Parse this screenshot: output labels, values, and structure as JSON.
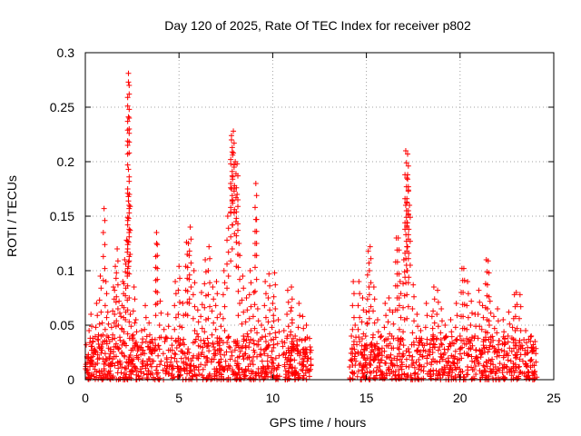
{
  "chart_data": {
    "type": "scatter",
    "title": "Day 120 of 2025, Rate Of TEC Index for receiver p802",
    "xlabel": "GPS time / hours",
    "ylabel": "ROTI / TECUs",
    "xlim": [
      0,
      25
    ],
    "ylim": [
      0,
      0.3
    ],
    "xticks": [
      0,
      5,
      10,
      15,
      20,
      25
    ],
    "yticks": [
      0,
      0.05,
      0.1,
      0.15,
      0.2,
      0.25,
      0.3
    ],
    "xtick_labels": [
      "0",
      "5",
      "10",
      "15",
      "20",
      "25"
    ],
    "ytick_labels": [
      "0",
      "0.05",
      "0.1",
      "0.15",
      "0.2",
      "0.25",
      "0.3"
    ],
    "grid": true,
    "marker": "+",
    "series": [
      {
        "name": "ROTI",
        "color": "#ff0000",
        "x": [
          0.05,
          0.1,
          0.2,
          0.3,
          0.4,
          0.5,
          0.6,
          0.7,
          0.8,
          0.9,
          1.0,
          1.1,
          1.2,
          1.3,
          1.4,
          1.5,
          1.6,
          1.7,
          1.8,
          1.9,
          2.0,
          2.1,
          2.2,
          2.3,
          2.35,
          2.4,
          2.5,
          2.6,
          2.7,
          2.8,
          3.0,
          3.2,
          3.4,
          3.6,
          3.8,
          4.0,
          4.2,
          4.4,
          4.6,
          4.8,
          5.0,
          5.2,
          5.4,
          5.6,
          5.8,
          6.0,
          6.2,
          6.4,
          6.6,
          6.8,
          7.0,
          7.2,
          7.4,
          7.6,
          7.8,
          7.9,
          8.0,
          8.1,
          8.2,
          8.4,
          8.6,
          8.8,
          9.0,
          9.2,
          9.4,
          9.6,
          9.8,
          10.0,
          10.3,
          10.6,
          10.8,
          11.0,
          11.2,
          11.4,
          11.6,
          11.8,
          12.0,
          14.2,
          14.4,
          14.6,
          14.8,
          15.0,
          15.2,
          15.4,
          15.6,
          15.8,
          16.0,
          16.2,
          16.4,
          16.6,
          16.8,
          17.0,
          17.1,
          17.2,
          17.3,
          17.5,
          17.7,
          17.9,
          18.2,
          18.5,
          18.8,
          19.0,
          19.2,
          19.5,
          19.8,
          20.0,
          20.2,
          20.4,
          20.6,
          20.8,
          21.0,
          21.2,
          21.4,
          21.6,
          21.8,
          22.0,
          22.3,
          22.6,
          22.8,
          23.0,
          23.2,
          23.5,
          23.8,
          24.0,
          0.3,
          1.0,
          2.3,
          2.3,
          2.3,
          2.3,
          2.3,
          2.3,
          7.8,
          7.8,
          7.9,
          8.1,
          9.1,
          9.1,
          17.2,
          17.2,
          17.1,
          17.15,
          17.2,
          16.7,
          15.1,
          21.5,
          20.1,
          5.5,
          3.8,
          12.0,
          10.1,
          11.0,
          14.3,
          18.6,
          22.9
        ],
        "y": [
          0.032,
          0.02,
          0.045,
          0.06,
          0.038,
          0.025,
          0.07,
          0.041,
          0.095,
          0.052,
          0.157,
          0.09,
          0.062,
          0.035,
          0.048,
          0.085,
          0.104,
          0.12,
          0.072,
          0.058,
          0.09,
          0.11,
          0.128,
          0.108,
          0.17,
          0.06,
          0.04,
          0.085,
          0.055,
          0.03,
          0.045,
          0.068,
          0.052,
          0.028,
          0.135,
          0.072,
          0.046,
          0.06,
          0.038,
          0.09,
          0.104,
          0.07,
          0.126,
          0.14,
          0.1,
          0.064,
          0.08,
          0.11,
          0.122,
          0.085,
          0.09,
          0.06,
          0.1,
          0.15,
          0.175,
          0.228,
          0.2,
          0.17,
          0.125,
          0.095,
          0.075,
          0.1,
          0.08,
          0.065,
          0.05,
          0.09,
          0.097,
          0.07,
          0.055,
          0.045,
          0.082,
          0.066,
          0.04,
          0.07,
          0.058,
          0.05,
          0.03,
          0.04,
          0.05,
          0.09,
          0.075,
          0.062,
          0.122,
          0.085,
          0.055,
          0.04,
          0.07,
          0.075,
          0.062,
          0.13,
          0.09,
          0.11,
          0.21,
          0.207,
          0.16,
          0.087,
          0.06,
          0.045,
          0.07,
          0.058,
          0.082,
          0.065,
          0.05,
          0.055,
          0.07,
          0.04,
          0.102,
          0.09,
          0.072,
          0.06,
          0.082,
          0.068,
          0.11,
          0.072,
          0.058,
          0.065,
          0.055,
          0.062,
          0.048,
          0.08,
          0.078,
          0.045,
          0.04,
          0.035,
          0.015,
          0.01,
          0.281,
          0.273,
          0.241,
          0.193,
          0.168,
          0.164,
          0.224,
          0.22,
          0.208,
          0.198,
          0.18,
          0.147,
          0.188,
          0.184,
          0.16,
          0.155,
          0.122,
          0.13,
          0.118,
          0.109,
          0.102,
          0.125,
          0.125,
          0.025,
          0.098,
          0.085,
          0.09,
          0.085,
          0.078
        ],
        "baseline_band": {
          "x_ranges": [
            [
              0,
              12.1
            ],
            [
              14.1,
              24.1
            ]
          ],
          "y_range": [
            0,
            0.04
          ]
        }
      }
    ]
  }
}
